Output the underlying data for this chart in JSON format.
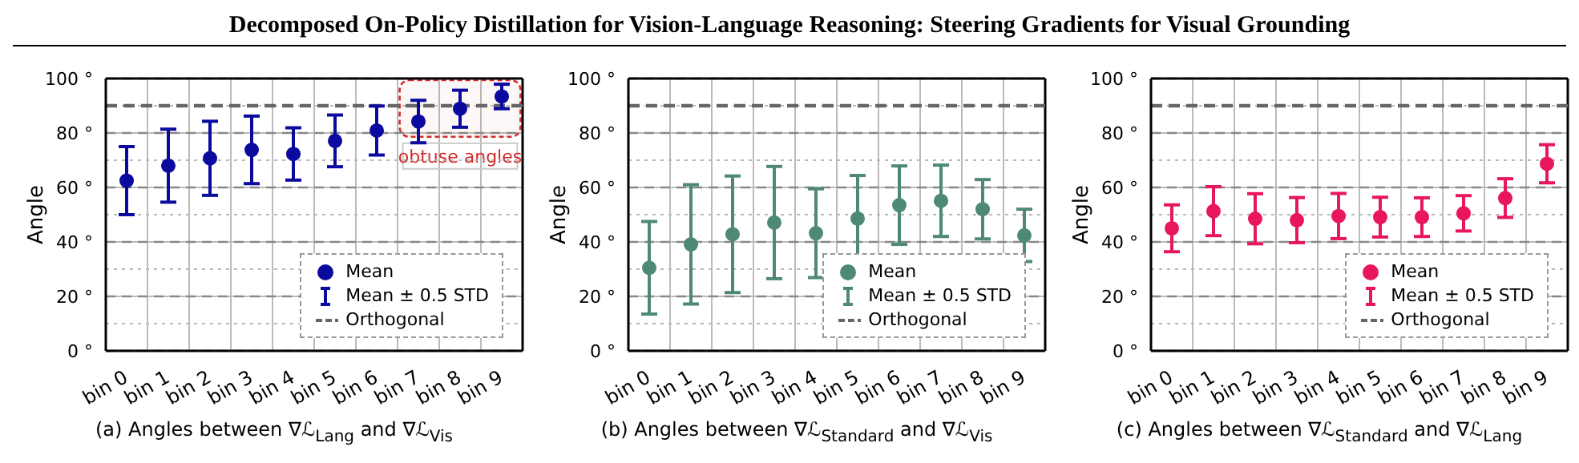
{
  "chart_data": [
    {
      "type": "scatter",
      "title": "Decomposed On-Policy Distillation for Vision-Language Reasoning: Steering Gradients for Visual Grounding",
      "xlabel": "(a) Angles between ∇ℒ$_{Lang}$ and ∇ℒ$_{Vis}$",
      "ylabel": "Angle",
      "categories": [
        "bin 0",
        "bin 1",
        "bin 2",
        "bin 3",
        "bin 4",
        "bin 5",
        "bin 6",
        "bin 7",
        "bin 8",
        "bin 9"
      ],
      "series": [
        {
          "name": "Mean",
          "color": "#0a0a9e",
          "values": [
            62.5,
            68,
            70.7,
            73.8,
            72.3,
            77.1,
            80.9,
            84.2,
            88.9,
            93.4
          ],
          "errors": [
            12.5,
            13.4,
            13.6,
            12.4,
            9.6,
            9.5,
            9,
            7.8,
            6.8,
            4.5
          ]
        }
      ],
      "ylim": [
        0,
        100
      ],
      "yticks": [
        {
          "value": 0,
          "label": "0 °"
        },
        {
          "value": 20,
          "label": "20 °"
        },
        {
          "value": 40,
          "label": "40 °"
        },
        {
          "value": 60,
          "label": "60 °"
        },
        {
          "value": 80,
          "label": "80 °"
        },
        {
          "value": 100,
          "label": "100 °"
        }
      ],
      "ref_lines": [
        {
          "axis": "y",
          "value": 90,
          "label": "Orthogonal",
          "color": "#666666",
          "line_style": "dashed"
        }
      ],
      "annotations": [
        "Mean ± 0.5 STD"
      ],
      "bands": [
        {
          "axis": "x",
          "from": "bin 7",
          "to": "bin 9",
          "label": "obtuse angles",
          "color": "#d42a2a"
        }
      ],
      "grid": true,
      "legend": "bottom right",
      "marker": "circle"
    },
    {
      "type": "scatter",
      "xlabel": "(b) Angles between ∇ℒ$_{Standard}$ and ∇ℒ$_{Vis}$",
      "ylabel": "Angle",
      "categories": [
        "bin 0",
        "bin 1",
        "bin 2",
        "bin 3",
        "bin 4",
        "bin 5",
        "bin 6",
        "bin 7",
        "bin 8",
        "bin 9"
      ],
      "series": [
        {
          "name": "Mean",
          "color": "#4e8a73",
          "values": [
            30.5,
            39.1,
            42.8,
            47.1,
            43.2,
            48.6,
            53.5,
            55.1,
            52,
            42.4
          ],
          "errors": [
            17,
            21.9,
            21.4,
            20.6,
            16.3,
            15.8,
            14.4,
            13.1,
            10.9,
            9.6
          ]
        }
      ],
      "ylim": [
        0,
        100
      ],
      "yticks": [
        {
          "value": 0,
          "label": "0 °"
        },
        {
          "value": 20,
          "label": "20 °"
        },
        {
          "value": 40,
          "label": "40 °"
        },
        {
          "value": 60,
          "label": "60 °"
        },
        {
          "value": 80,
          "label": "80 °"
        },
        {
          "value": 100,
          "label": "100 °"
        }
      ],
      "ref_lines": [
        {
          "axis": "y",
          "value": 90,
          "label": "Orthogonal",
          "color": "#666666",
          "line_style": "dashed"
        }
      ],
      "annotations": [
        "Mean ± 0.5 STD"
      ],
      "grid": true,
      "legend": "bottom right",
      "marker": "circle"
    },
    {
      "type": "scatter",
      "xlabel": "(c) Angles between ∇ℒ$_{Standard}$ and ∇ℒ$_{Lang}$",
      "ylabel": "Angle",
      "categories": [
        "bin 0",
        "bin 1",
        "bin 2",
        "bin 3",
        "bin 4",
        "bin 5",
        "bin 6",
        "bin 7",
        "bin 8",
        "bin 9"
      ],
      "series": [
        {
          "name": "Mean",
          "color": "#e8175d",
          "values": [
            45,
            51.3,
            48.5,
            48,
            49.5,
            49.1,
            49.1,
            50.5,
            56.1,
            68.7
          ],
          "errors": [
            8.6,
            9,
            9.2,
            8.3,
            8.3,
            7.3,
            7.1,
            6.5,
            7.1,
            7
          ]
        }
      ],
      "ylim": [
        0,
        100
      ],
      "yticks": [
        {
          "value": 0,
          "label": "0 °"
        },
        {
          "value": 20,
          "label": "20 °"
        },
        {
          "value": 40,
          "label": "40 °"
        },
        {
          "value": 60,
          "label": "60 °"
        },
        {
          "value": 80,
          "label": "80 °"
        },
        {
          "value": 100,
          "label": "100 °"
        }
      ],
      "ref_lines": [
        {
          "axis": "y",
          "value": 90,
          "label": "Orthogonal",
          "color": "#666666",
          "line_style": "dashed"
        }
      ],
      "annotations": [
        "Mean ± 0.5 STD"
      ],
      "grid": true,
      "legend": "bottom right",
      "marker": "circle"
    }
  ]
}
